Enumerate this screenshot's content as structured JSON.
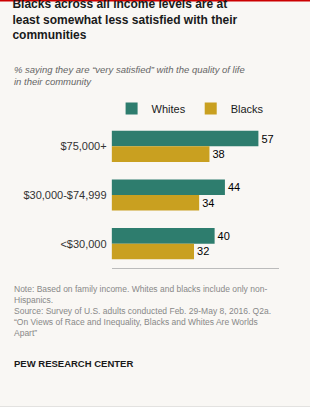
{
  "chart_data": {
    "type": "bar",
    "orientation": "horizontal",
    "title": "Blacks across all income levels are at\nleast somewhat less satisfied with their\ncommunities",
    "subtitle": "% saying they are “very satisfied” with the quality of life\nin their community",
    "categories": [
      "$75,000+",
      "$30,000-$74,999",
      "<$30,000"
    ],
    "series": [
      {
        "name": "Whites",
        "color": "#2e7d6e",
        "values": [
          57,
          44,
          40
        ]
      },
      {
        "name": "Blacks",
        "color": "#c9a020",
        "values": [
          38,
          34,
          32
        ]
      }
    ],
    "xlim": [
      0,
      65
    ],
    "xticks": [],
    "grid": false,
    "legend": "top",
    "data_labels": true,
    "tick_labels": "y",
    "notes": [
      "Note: Based on family income. Whites and blacks include only non-",
      "Hispanics.",
      "Source: Survey of U.S. adults conducted Feb. 29-May 8, 2016. Q2a.",
      "“On Views of Race and Inequality, Blacks and Whites Are Worlds",
      "Apart”"
    ],
    "source": "PEW RESEARCH CENTER"
  }
}
